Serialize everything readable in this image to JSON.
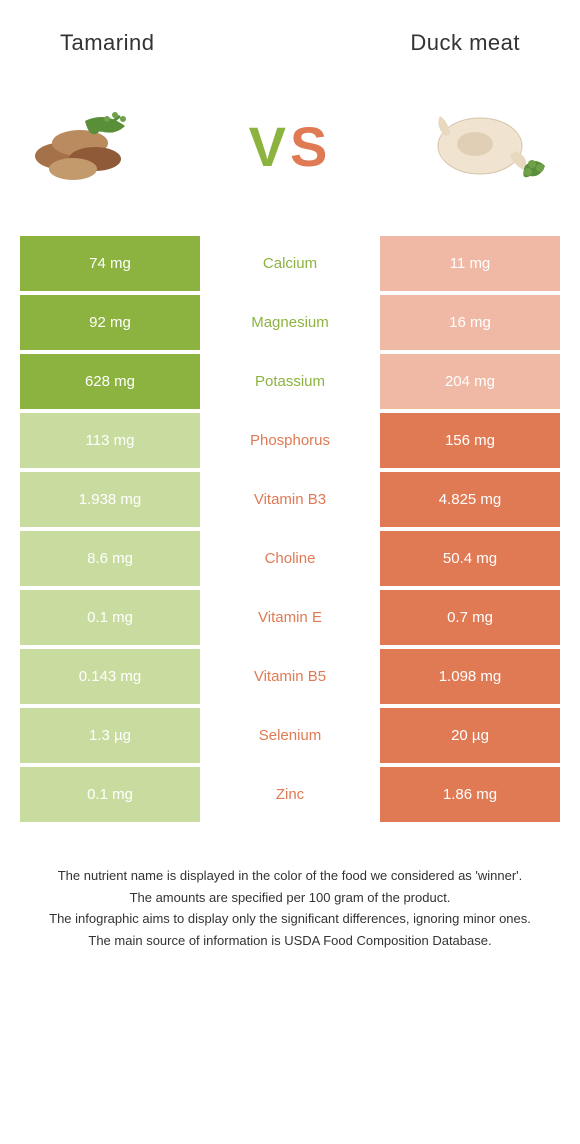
{
  "header": {
    "left_title": "Tamarind",
    "right_title": "Duck meat"
  },
  "vs": {
    "v": "V",
    "s": "S"
  },
  "colors": {
    "green_winner": "#8cb33f",
    "green_loser": "#c9dca0",
    "orange_winner": "#e07a54",
    "orange_loser": "#f0b9a5",
    "text_dark": "#333333",
    "background": "#ffffff"
  },
  "rows": [
    {
      "left": "74 mg",
      "label": "Calcium",
      "right": "11 mg",
      "winner": "left"
    },
    {
      "left": "92 mg",
      "label": "Magnesium",
      "right": "16 mg",
      "winner": "left"
    },
    {
      "left": "628 mg",
      "label": "Potassium",
      "right": "204 mg",
      "winner": "left"
    },
    {
      "left": "113 mg",
      "label": "Phosphorus",
      "right": "156 mg",
      "winner": "right"
    },
    {
      "left": "1.938 mg",
      "label": "Vitamin B3",
      "right": "4.825 mg",
      "winner": "right"
    },
    {
      "left": "8.6 mg",
      "label": "Choline",
      "right": "50.4 mg",
      "winner": "right"
    },
    {
      "left": "0.1 mg",
      "label": "Vitamin E",
      "right": "0.7 mg",
      "winner": "right"
    },
    {
      "left": "0.143 mg",
      "label": "Vitamin B5",
      "right": "1.098 mg",
      "winner": "right"
    },
    {
      "left": "1.3 µg",
      "label": "Selenium",
      "right": "20 µg",
      "winner": "right"
    },
    {
      "left": "0.1 mg",
      "label": "Zinc",
      "right": "1.86 mg",
      "winner": "right"
    }
  ],
  "footer": {
    "line1": "The nutrient name is displayed in the color of the food we considered as 'winner'.",
    "line2": "The amounts are specified per 100 gram of the product.",
    "line3": "The infographic aims to display only the significant differences, ignoring minor ones.",
    "line4": "The main source of information is USDA Food Composition Database."
  }
}
